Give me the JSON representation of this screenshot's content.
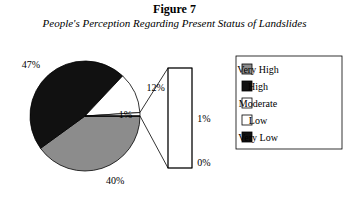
{
  "chart_data": {
    "type": "pie",
    "title": "Figure 7",
    "subtitle": "People's Perception Regarding Present Status of Landslides",
    "categories": [
      "Very High",
      "High",
      "Moderate",
      "Low",
      "Very Low"
    ],
    "values": [
      40,
      47,
      12,
      1,
      0
    ],
    "value_labels": [
      "40%",
      "47%",
      "12%",
      "1%",
      "0%"
    ],
    "colors": [
      "#8c8c8c",
      "#111111",
      "#ffffff",
      "#ffffff",
      "#111111"
    ],
    "legend": "right",
    "data_labels": true
  }
}
